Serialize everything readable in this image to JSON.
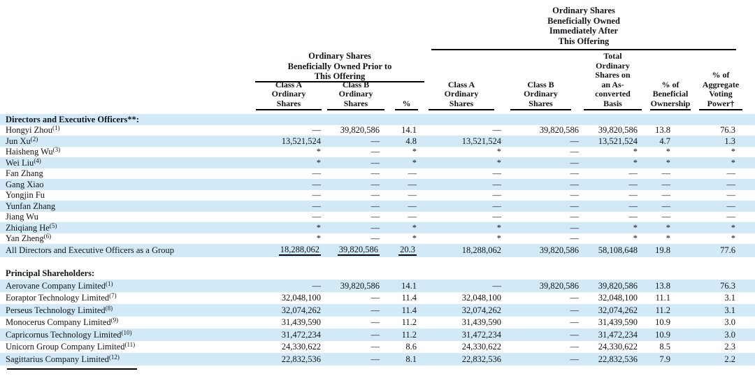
{
  "colors": {
    "row_highlight": "#d2eaf7",
    "rule": "#000000",
    "text": "#101418"
  },
  "header": {
    "prior_group_title": "Ordinary Shares\nBeneficially Owned Prior to\nThis Offering",
    "after_group_title": "Ordinary Shares\nBeneficially Owned\nImmediately After\nThis Offering",
    "columns": [
      {
        "label": "Class A\nOrdinary\nShares"
      },
      {
        "label": "Class B\nOrdinary\nShares"
      },
      {
        "label": "%"
      },
      {
        "label": "Class A\nOrdinary\nShares"
      },
      {
        "label": "Class B\nOrdinary\nShares"
      },
      {
        "label": "Total\nOrdinary\nShares on\nan As-\nconverted\nBasis"
      },
      {
        "label": "% of\nBeneficial\nOwnership"
      },
      {
        "label": "% of\nAggregate\nVoting\nPower†"
      }
    ]
  },
  "table": {
    "sections": [
      {
        "heading": "Directors and Executive Officers**:",
        "heading_highlight": true,
        "rows": [
          {
            "name": "Hongyi Zhou",
            "sup": "(1)",
            "highlight": false,
            "values": [
              "—",
              "39,820,586",
              "14.1",
              "—",
              "39,820,586",
              "39,820,586",
              "13.8",
              "76.3"
            ]
          },
          {
            "name": "Jun Xu",
            "sup": "(2)",
            "highlight": true,
            "values": [
              "13,521,524",
              "—",
              "4.8",
              "13,521,524",
              "—",
              "13,521,524",
              "4.7",
              "1.3"
            ]
          },
          {
            "name": "Haisheng Wu",
            "sup": "(3)",
            "highlight": false,
            "values": [
              "*",
              "—",
              "*",
              "*",
              "—",
              "*",
              "*",
              "*"
            ]
          },
          {
            "name": "Wei Liu",
            "sup": "(4)",
            "highlight": true,
            "values": [
              "*",
              "—",
              "*",
              "*",
              "—",
              "*",
              "*",
              "*"
            ]
          },
          {
            "name": "Fan Zhang",
            "sup": "",
            "highlight": false,
            "values": [
              "—",
              "—",
              "—",
              "—",
              "—",
              "—",
              "—",
              "—"
            ]
          },
          {
            "name": "Gang Xiao",
            "sup": "",
            "highlight": true,
            "values": [
              "—",
              "—",
              "—",
              "—",
              "—",
              "—",
              "—",
              "—"
            ]
          },
          {
            "name": "Yongjin Fu",
            "sup": "",
            "highlight": false,
            "values": [
              "—",
              "—",
              "—",
              "—",
              "—",
              "—",
              "—",
              "—"
            ]
          },
          {
            "name": "Yunfan Zhang",
            "sup": "",
            "highlight": true,
            "values": [
              "—",
              "—",
              "—",
              "—",
              "—",
              "—",
              "—",
              "—"
            ]
          },
          {
            "name": "Jiang Wu",
            "sup": "",
            "highlight": false,
            "values": [
              "—",
              "—",
              "—",
              "—",
              "—",
              "—",
              "—",
              "—"
            ]
          },
          {
            "name": "Zhiqiang He",
            "sup": "(5)",
            "highlight": true,
            "values": [
              "*",
              "—",
              "*",
              "*",
              "—",
              "*",
              "*",
              "*"
            ]
          },
          {
            "name": "Yan Zheng",
            "sup": "(6)",
            "highlight": false,
            "values": [
              "*",
              "—",
              "*",
              "*",
              "—",
              "*",
              "*",
              "*"
            ]
          },
          {
            "name": "All Directors and Executive Officers as a Group",
            "sup": "",
            "highlight": true,
            "underline_prior": true,
            "values": [
              "18,288,062",
              "39,820,586",
              "20.3",
              "18,288,062",
              "39,820,586",
              "58,108,648",
              "19.8",
              "77.6"
            ]
          }
        ]
      },
      {
        "heading": "Principal Shareholders:",
        "heading_highlight": false,
        "rows": [
          {
            "name": "Aerovane Company Limited",
            "sup": "(1)",
            "highlight": true,
            "values": [
              "—",
              "39,820,586",
              "14.1",
              "—",
              "39,820,586",
              "39,820,586",
              "13.8",
              "76.3"
            ]
          },
          {
            "name": "Eoraptor Technology Limited",
            "sup": "(7)",
            "highlight": false,
            "values": [
              "32,048,100",
              "—",
              "11.4",
              "32,048,100",
              "—",
              "32,048,100",
              "11.1",
              "3.1"
            ]
          },
          {
            "name": "Perseus Technology Limited",
            "sup": "(8)",
            "highlight": true,
            "values": [
              "32,074,262",
              "—",
              "11.4",
              "32,074,262",
              "—",
              "32,074,262",
              "11.2",
              "3.1"
            ]
          },
          {
            "name": "Monocerus Company Limited",
            "sup": "(9)",
            "highlight": false,
            "values": [
              "31,439,590",
              "—",
              "11.2",
              "31,439,590",
              "—",
              "31,439,590",
              "10.9",
              "3.0"
            ]
          },
          {
            "name": "Capricornus Technology Limited",
            "sup": "(10)",
            "highlight": true,
            "values": [
              "31,472,234",
              "—",
              "11.2",
              "31,472,234",
              "—",
              "31,472,234",
              "10.9",
              "3.0"
            ]
          },
          {
            "name": "Unicorn Group Company Limited",
            "sup": "(11)",
            "highlight": false,
            "values": [
              "24,330,622",
              "—",
              "8.6",
              "24,330,622",
              "—",
              "24,330,622",
              "8.5",
              "2.3"
            ]
          },
          {
            "name": "Sagittarius Company Limited",
            "sup": "(12)",
            "highlight": true,
            "values": [
              "22,832,536",
              "—",
              "8.1",
              "22,832,536",
              "—",
              "22,832,536",
              "7.9",
              "2.2"
            ]
          }
        ]
      }
    ]
  }
}
